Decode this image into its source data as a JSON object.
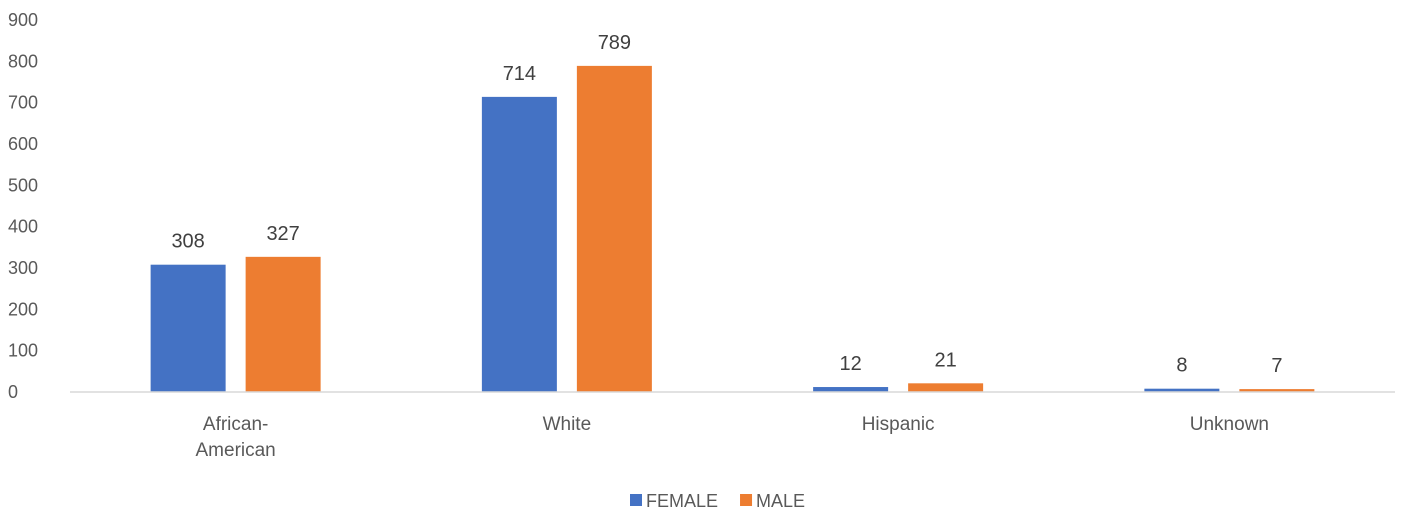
{
  "chart_data": {
    "type": "bar",
    "title": "",
    "xlabel": "",
    "ylabel": "",
    "categories": [
      [
        "African-",
        "American"
      ],
      [
        "White"
      ],
      [
        "Hispanic"
      ],
      [
        "Unknown"
      ]
    ],
    "series": [
      {
        "name": "FEMALE",
        "color": "#4472C4",
        "values": [
          308,
          714,
          12,
          8
        ]
      },
      {
        "name": "MALE",
        "color": "#ED7D31",
        "values": [
          327,
          789,
          21,
          7
        ]
      }
    ],
    "ylim": [
      0,
      900
    ],
    "yticks": [
      0,
      100,
      200,
      300,
      400,
      500,
      600,
      700,
      800,
      900
    ],
    "grid": false,
    "data_labels": true,
    "legend_position": "bottom"
  }
}
